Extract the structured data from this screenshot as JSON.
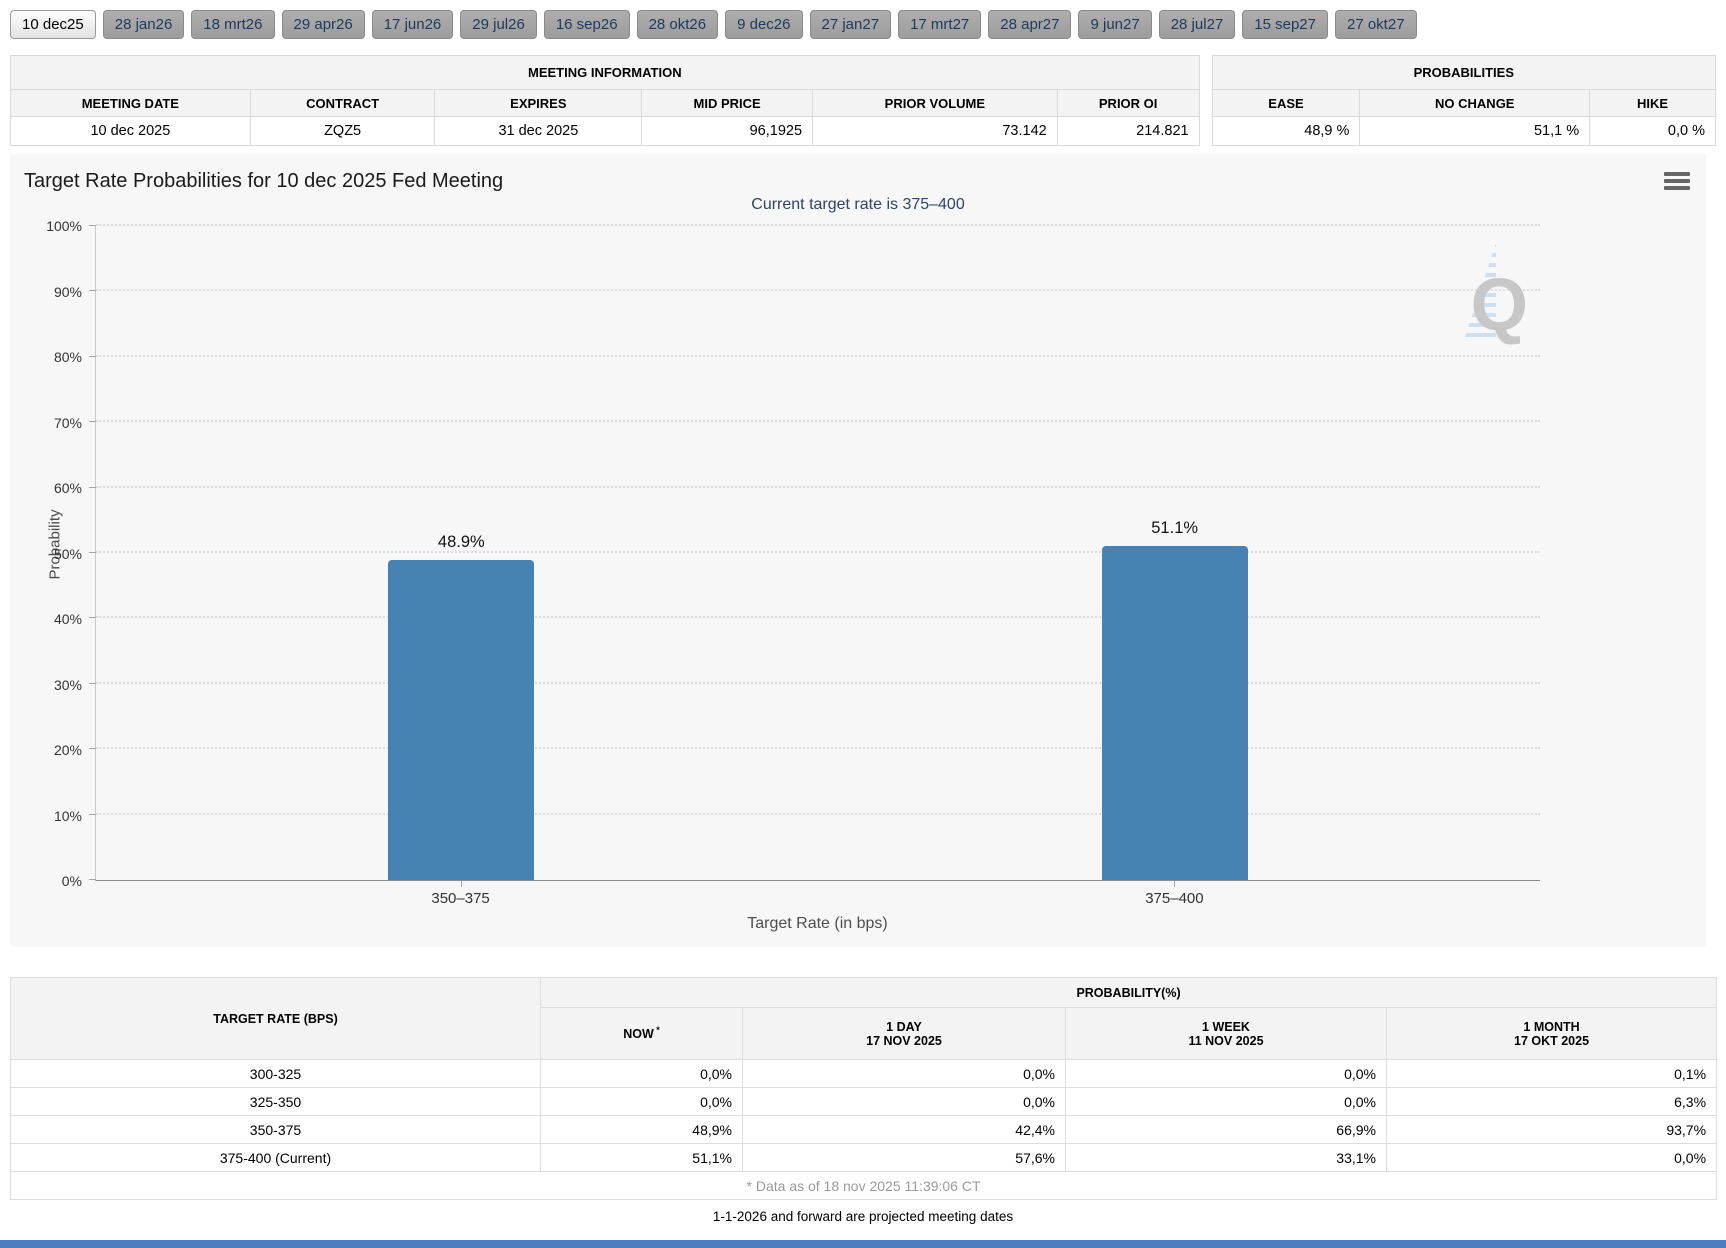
{
  "tabs": {
    "items": [
      {
        "label": "10 dec25",
        "active": true
      },
      {
        "label": "28 jan26",
        "active": false
      },
      {
        "label": "18 mrt26",
        "active": false
      },
      {
        "label": "29 apr26",
        "active": false
      },
      {
        "label": "17 jun26",
        "active": false
      },
      {
        "label": "29 jul26",
        "active": false
      },
      {
        "label": "16 sep26",
        "active": false
      },
      {
        "label": "28 okt26",
        "active": false
      },
      {
        "label": "9 dec26",
        "active": false
      },
      {
        "label": "27 jan27",
        "active": false
      },
      {
        "label": "17 mrt27",
        "active": false
      },
      {
        "label": "28 apr27",
        "active": false
      },
      {
        "label": "9 jun27",
        "active": false
      },
      {
        "label": "28 jul27",
        "active": false
      },
      {
        "label": "15 sep27",
        "active": false
      },
      {
        "label": "27 okt27",
        "active": false
      }
    ]
  },
  "meeting_information": {
    "title": "MEETING INFORMATION",
    "columns": [
      "MEETING DATE",
      "CONTRACT",
      "EXPIRES",
      "MID PRICE",
      "PRIOR VOLUME",
      "PRIOR OI"
    ],
    "values": [
      "10 dec 2025",
      "ZQZ5",
      "31 dec 2025",
      "96,1925",
      "73.142",
      "214.821"
    ]
  },
  "probabilities_panel": {
    "title": "PROBABILITIES",
    "columns": [
      "EASE",
      "NO CHANGE",
      "HIKE"
    ],
    "values": [
      "48,9 %",
      "51,1 %",
      "0,0 %"
    ]
  },
  "chart": {
    "menu_icon": "hamburger-icon",
    "watermark_letter": "Q"
  },
  "chart_data": {
    "type": "bar",
    "title": "Target Rate Probabilities for 10 dec 2025 Fed Meeting",
    "subtitle": "Current target rate is 375–400",
    "categories": [
      "350–375",
      "375–400"
    ],
    "values": [
      48.9,
      51.1
    ],
    "value_labels": [
      "48.9%",
      "51.1%"
    ],
    "xlabel": "Target Rate (in bps)",
    "ylabel": "Probability",
    "ylim": [
      0,
      100
    ],
    "ytick_step": 10,
    "ytick_suffix": "%",
    "grid": "dotted-horizontal",
    "legend": "none",
    "bar_color": "#4682b4"
  },
  "probability_table": {
    "row_header": "TARGET RATE (BPS)",
    "group_header": "PROBABILITY(%)",
    "columns": [
      {
        "label": "NOW",
        "sup": "*",
        "date": ""
      },
      {
        "label": "1 DAY",
        "sup": "",
        "date": "17 NOV 2025"
      },
      {
        "label": "1 WEEK",
        "sup": "",
        "date": "11 NOV 2025"
      },
      {
        "label": "1 MONTH",
        "sup": "",
        "date": "17 OKT 2025"
      }
    ],
    "rows": [
      {
        "rate": "300-325",
        "values": [
          "0,0%",
          "0,0%",
          "0,0%",
          "0,1%"
        ]
      },
      {
        "rate": "325-350",
        "values": [
          "0,0%",
          "0,0%",
          "0,0%",
          "6,3%"
        ]
      },
      {
        "rate": "350-375",
        "values": [
          "48,9%",
          "42,4%",
          "66,9%",
          "93,7%"
        ]
      },
      {
        "rate": "375-400 (Current)",
        "values": [
          "51,1%",
          "57,6%",
          "33,1%",
          "0,0%"
        ]
      }
    ],
    "footnote": "* Data as of 18 nov 2025 11:39:06 CT"
  },
  "footer": {
    "note": "1-1-2026 and forward are projected meeting dates"
  },
  "colors": {
    "bar": "#4682b4",
    "now_column_bg": "#fafad2",
    "accent_bottom_bar": "#4d7ebf",
    "tab_text": "#1c3a5e",
    "subtitle_text": "#2e4369"
  }
}
